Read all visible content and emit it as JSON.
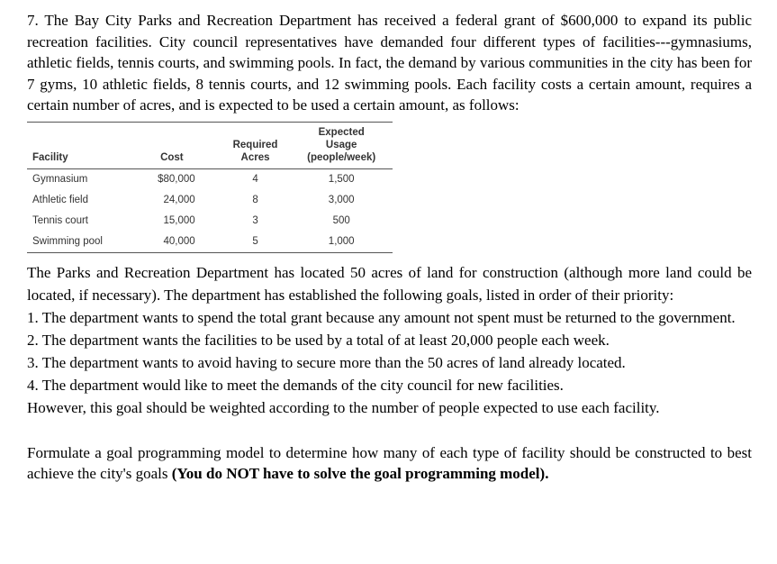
{
  "doc": {
    "intro": "7. The Bay City Parks and Recreation Department has received a federal grant of $600,000 to expand its public recreation facilities. City council representatives have demanded four different types of facilities---gymnasiums, athletic fields, tennis courts, and swimming pools. In fact, the demand by various communities in the city has been for 7 gyms, 10 athletic fields, 8 tennis courts, and 12 swimming pools. Each facility costs a certain amount, requires a certain number of acres, and is expected to be used a certain amount, as follows:",
    "table": {
      "headers": [
        "Facility",
        "Cost",
        "Required\nAcres",
        "Expected\nUsage\n(people/week)"
      ],
      "rows": [
        [
          "Gymnasium",
          "$80,000",
          "4",
          "1,500"
        ],
        [
          "Athletic field",
          "24,000",
          "8",
          "3,000"
        ],
        [
          "Tennis court",
          "15,000",
          "3",
          "500"
        ],
        [
          "Swimming pool",
          "40,000",
          "5",
          "1,000"
        ]
      ]
    },
    "paragraph2": "The Parks and Recreation Department has located 50 acres of land for construction (although more land could be located, if necessary). The department has established the following goals, listed in order of their priority:",
    "goals": [
      "1. The department wants to spend the total grant because any amount not spent must be returned to the government.",
      "2. The department wants the facilities to be used by a total of at least 20,000 people each week.",
      "3. The department wants to avoid having to secure more than the 50 acres of land already located.",
      "4. The department would like to meet the demands of the city council for new facilities.",
      "However, this goal should be weighted according to the number of people expected to use each facility."
    ],
    "closing_normal": "Formulate a goal programming model to determine how many of each type of facility should be constructed to best achieve the city's goals ",
    "closing_bold": "(You do NOT have to solve the goal programming model)."
  }
}
